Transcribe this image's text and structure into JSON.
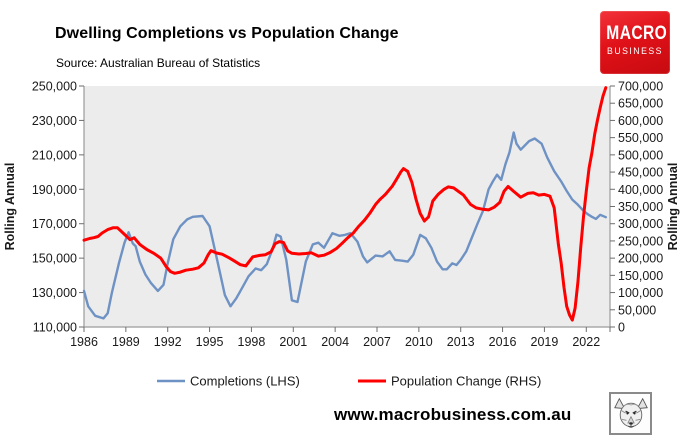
{
  "header": {
    "title": "Dwelling Completions vs Population Change",
    "source": "Source: Australian Bureau of Statistics",
    "logo": {
      "line1": "MACRO",
      "line2": "BUSINESS",
      "bg_color": "#e01118"
    }
  },
  "footer": {
    "site": "www.macrobusiness.com.au"
  },
  "chart_data": {
    "type": "line",
    "title": "Dwelling Completions vs Population Change",
    "plot_bg": "#ececec",
    "axis_color": "#9b9b9b",
    "tick_color": "#6e6e6e",
    "label_color": "#1a1a1a",
    "grid": false,
    "legend_position": "bottom",
    "left_axis": {
      "label": "Rolling Annual",
      "min": 110000,
      "max": 250000,
      "step": 20000,
      "ticks": [
        "250,000",
        "230,000",
        "210,000",
        "190,000",
        "170,000",
        "150,000",
        "130,000",
        "110,000"
      ]
    },
    "right_axis": {
      "label": "Rolling Annual",
      "min": 0,
      "max": 700000,
      "step": 50000,
      "ticks": [
        "700,000",
        "650,000",
        "600,000",
        "550,000",
        "500,000",
        "450,000",
        "400,000",
        "350,000",
        "300,000",
        "250,000",
        "200,000",
        "150,000",
        "100,000",
        "50,000",
        "0"
      ]
    },
    "x_axis": {
      "start_year": 1986,
      "end_year": 2023.7,
      "ticks": [
        "1986",
        "1989",
        "1992",
        "1995",
        "1998",
        "2001",
        "2004",
        "2007",
        "2010",
        "2013",
        "2016",
        "2019",
        "2022"
      ]
    },
    "series": [
      {
        "name": "Completions (LHS)",
        "axis": "left",
        "color": "#6f92c4",
        "width": 2.4,
        "points": [
          [
            1986.0,
            131000
          ],
          [
            1986.3,
            122000
          ],
          [
            1986.8,
            116500
          ],
          [
            1987.4,
            115000
          ],
          [
            1987.7,
            118000
          ],
          [
            1988.0,
            130000
          ],
          [
            1988.5,
            147000
          ],
          [
            1988.9,
            159000
          ],
          [
            1989.2,
            165000
          ],
          [
            1989.5,
            158500
          ],
          [
            1989.7,
            157000
          ],
          [
            1990.0,
            148000
          ],
          [
            1990.4,
            140500
          ],
          [
            1990.8,
            135500
          ],
          [
            1991.3,
            131000
          ],
          [
            1991.7,
            134500
          ],
          [
            1992.0,
            147000
          ],
          [
            1992.4,
            161000
          ],
          [
            1992.9,
            168500
          ],
          [
            1993.4,
            172500
          ],
          [
            1993.8,
            174000
          ],
          [
            1994.5,
            174500
          ],
          [
            1995.0,
            168500
          ],
          [
            1995.6,
            147000
          ],
          [
            1996.1,
            128500
          ],
          [
            1996.5,
            122000
          ],
          [
            1996.9,
            126500
          ],
          [
            1997.2,
            130800
          ],
          [
            1997.8,
            139500
          ],
          [
            1998.3,
            144000
          ],
          [
            1998.7,
            143000
          ],
          [
            1999.1,
            146500
          ],
          [
            1999.5,
            155000
          ],
          [
            1999.8,
            163700
          ],
          [
            2000.1,
            162500
          ],
          [
            2000.5,
            149000
          ],
          [
            2000.9,
            125500
          ],
          [
            2001.3,
            124500
          ],
          [
            2001.9,
            148000
          ],
          [
            2002.4,
            158000
          ],
          [
            2002.8,
            159000
          ],
          [
            2003.2,
            156000
          ],
          [
            2003.8,
            164500
          ],
          [
            2004.3,
            163000
          ],
          [
            2004.7,
            163500
          ],
          [
            2005.1,
            164500
          ],
          [
            2005.6,
            159500
          ],
          [
            2006.0,
            151000
          ],
          [
            2006.3,
            147500
          ],
          [
            2006.9,
            151500
          ],
          [
            2007.4,
            151000
          ],
          [
            2007.9,
            154000
          ],
          [
            2008.3,
            149000
          ],
          [
            2008.8,
            148500
          ],
          [
            2009.2,
            148000
          ],
          [
            2009.6,
            152000
          ],
          [
            2010.1,
            163500
          ],
          [
            2010.5,
            161500
          ],
          [
            2010.9,
            156000
          ],
          [
            2011.3,
            148000
          ],
          [
            2011.7,
            143500
          ],
          [
            2012.0,
            143500
          ],
          [
            2012.4,
            147000
          ],
          [
            2012.7,
            146000
          ],
          [
            2013.0,
            149000
          ],
          [
            2013.4,
            154000
          ],
          [
            2013.8,
            162000
          ],
          [
            2014.2,
            170000
          ],
          [
            2014.6,
            177500
          ],
          [
            2015.0,
            190000
          ],
          [
            2015.3,
            194500
          ],
          [
            2015.6,
            198500
          ],
          [
            2015.9,
            195500
          ],
          [
            2016.2,
            204500
          ],
          [
            2016.5,
            211500
          ],
          [
            2016.8,
            223000
          ],
          [
            2017.0,
            216500
          ],
          [
            2017.3,
            213000
          ],
          [
            2017.9,
            218000
          ],
          [
            2018.3,
            219500
          ],
          [
            2018.8,
            216500
          ],
          [
            2019.2,
            208500
          ],
          [
            2019.7,
            200500
          ],
          [
            2020.2,
            194500
          ],
          [
            2020.6,
            189000
          ],
          [
            2021.0,
            184000
          ],
          [
            2021.4,
            181000
          ],
          [
            2021.8,
            177500
          ],
          [
            2022.1,
            175500
          ],
          [
            2022.4,
            174000
          ],
          [
            2022.7,
            172800
          ],
          [
            2023.0,
            175200
          ],
          [
            2023.4,
            173800
          ]
        ]
      },
      {
        "name": "Population Change (RHS)",
        "axis": "right",
        "color": "#fe0000",
        "width": 3,
        "points": [
          [
            1986.0,
            252000
          ],
          [
            1986.4,
            257000
          ],
          [
            1986.7,
            259500
          ],
          [
            1987.0,
            263000
          ],
          [
            1987.3,
            273000
          ],
          [
            1987.7,
            283000
          ],
          [
            1988.1,
            288500
          ],
          [
            1988.4,
            288000
          ],
          [
            1988.9,
            269000
          ],
          [
            1989.3,
            254000
          ],
          [
            1989.6,
            259000
          ],
          [
            1990.0,
            240000
          ],
          [
            1990.5,
            225000
          ],
          [
            1991.0,
            214000
          ],
          [
            1991.5,
            200000
          ],
          [
            1991.9,
            175000
          ],
          [
            1992.2,
            161000
          ],
          [
            1992.5,
            156000
          ],
          [
            1992.9,
            159500
          ],
          [
            1993.3,
            165000
          ],
          [
            1993.8,
            168000
          ],
          [
            1994.2,
            172000
          ],
          [
            1994.6,
            186000
          ],
          [
            1994.9,
            210000
          ],
          [
            1995.1,
            222000
          ],
          [
            1995.5,
            215000
          ],
          [
            1995.9,
            211500
          ],
          [
            1996.4,
            201000
          ],
          [
            1996.8,
            191000
          ],
          [
            1997.2,
            181000
          ],
          [
            1997.6,
            177500
          ],
          [
            1998.1,
            204000
          ],
          [
            1998.6,
            208000
          ],
          [
            1999.0,
            210000
          ],
          [
            1999.4,
            218000
          ],
          [
            1999.7,
            242000
          ],
          [
            2000.0,
            248000
          ],
          [
            2000.3,
            245500
          ],
          [
            2000.6,
            221000
          ],
          [
            2000.9,
            214000
          ],
          [
            2001.4,
            212000
          ],
          [
            2001.9,
            213500
          ],
          [
            2002.3,
            215500
          ],
          [
            2002.8,
            206000
          ],
          [
            2003.2,
            208500
          ],
          [
            2003.6,
            215500
          ],
          [
            2004.1,
            228000
          ],
          [
            2004.5,
            243000
          ],
          [
            2004.9,
            259000
          ],
          [
            2005.3,
            273000
          ],
          [
            2005.7,
            293000
          ],
          [
            2006.1,
            310000
          ],
          [
            2006.5,
            331000
          ],
          [
            2006.9,
            356000
          ],
          [
            2007.2,
            370000
          ],
          [
            2007.6,
            385000
          ],
          [
            2008.1,
            409000
          ],
          [
            2008.4,
            429000
          ],
          [
            2008.7,
            450000
          ],
          [
            2008.9,
            460000
          ],
          [
            2009.2,
            452000
          ],
          [
            2009.5,
            420000
          ],
          [
            2009.8,
            370000
          ],
          [
            2010.1,
            330000
          ],
          [
            2010.4,
            308000
          ],
          [
            2010.7,
            320000
          ],
          [
            2011.0,
            366000
          ],
          [
            2011.4,
            386000
          ],
          [
            2011.8,
            400000
          ],
          [
            2012.1,
            407000
          ],
          [
            2012.5,
            404000
          ],
          [
            2012.8,
            395000
          ],
          [
            2013.2,
            383000
          ],
          [
            2013.7,
            356000
          ],
          [
            2014.1,
            346000
          ],
          [
            2014.6,
            342000
          ],
          [
            2015.0,
            340000
          ],
          [
            2015.4,
            348000
          ],
          [
            2015.8,
            362000
          ],
          [
            2016.1,
            394000
          ],
          [
            2016.4,
            408000
          ],
          [
            2016.8,
            394000
          ],
          [
            2017.3,
            377000
          ],
          [
            2017.8,
            388000
          ],
          [
            2018.2,
            390000
          ],
          [
            2018.6,
            383000
          ],
          [
            2019.0,
            385000
          ],
          [
            2019.4,
            380000
          ],
          [
            2019.7,
            346000
          ],
          [
            2020.0,
            240000
          ],
          [
            2020.2,
            185000
          ],
          [
            2020.4,
            115000
          ],
          [
            2020.6,
            60000
          ],
          [
            2020.8,
            35000
          ],
          [
            2021.0,
            20000
          ],
          [
            2021.2,
            55000
          ],
          [
            2021.4,
            130000
          ],
          [
            2021.6,
            230000
          ],
          [
            2021.8,
            320000
          ],
          [
            2022.0,
            395000
          ],
          [
            2022.2,
            462000
          ],
          [
            2022.4,
            506000
          ],
          [
            2022.6,
            560000
          ],
          [
            2022.8,
            600000
          ],
          [
            2023.0,
            637000
          ],
          [
            2023.2,
            671000
          ],
          [
            2023.4,
            695000
          ]
        ]
      }
    ]
  }
}
